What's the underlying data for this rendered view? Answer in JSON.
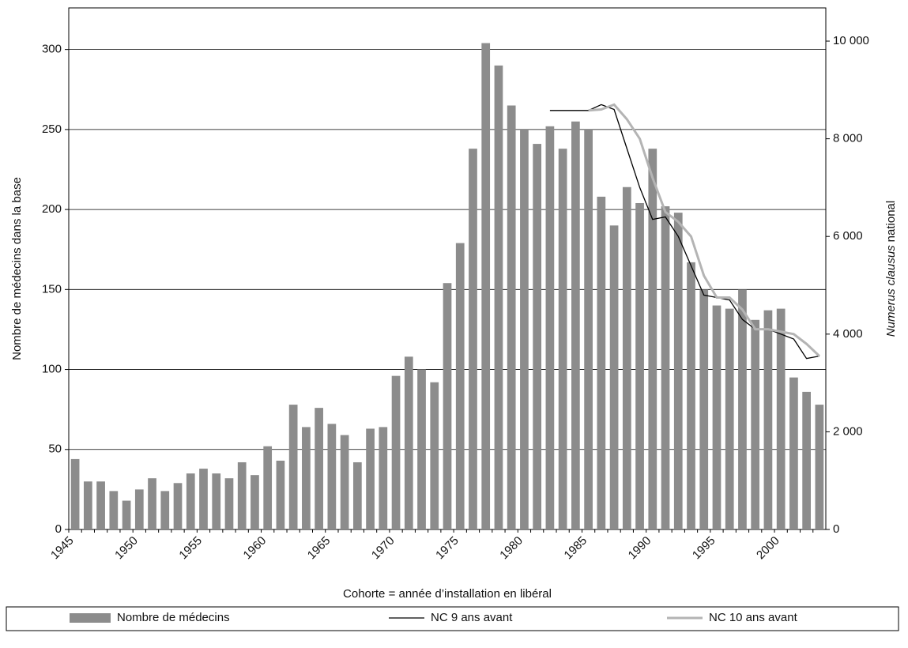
{
  "chart_data": {
    "type": "bar-line",
    "xlabel": "Cohorte = année d’installation en libéral",
    "ylabel": "Nombre de médecins dans la base",
    "y2label": {
      "italic": "Numerus clausus",
      "regular": "national"
    },
    "categories": [
      "1945",
      null,
      null,
      null,
      null,
      "1950",
      null,
      null,
      null,
      null,
      "1955",
      null,
      null,
      null,
      null,
      "1960",
      null,
      null,
      null,
      null,
      "1965",
      null,
      null,
      null,
      null,
      "1970",
      null,
      null,
      null,
      null,
      "1975",
      null,
      null,
      null,
      null,
      "1980",
      null,
      null,
      null,
      null,
      "1985",
      null,
      null,
      null,
      null,
      "1990",
      null,
      null,
      null,
      null,
      "1995",
      null,
      null,
      null,
      null,
      "2000",
      null,
      null,
      null
    ],
    "ylim": [
      0,
      326
    ],
    "yticks": [
      0,
      50,
      100,
      150,
      200,
      250,
      300
    ],
    "y2lim": [
      0,
      10680
    ],
    "y2ticks": [
      0,
      {
        "value": 2000,
        "label": "2 000"
      },
      {
        "value": 4000,
        "label": "4 000"
      },
      {
        "value": 6000,
        "label": "6 000"
      },
      {
        "value": 8000,
        "label": "8 000"
      },
      {
        "value": 10000,
        "label": "10 000"
      }
    ],
    "grid": true,
    "legend": "bottom",
    "series": [
      {
        "name": "Nombre de médecins",
        "color": "#8c8c8c",
        "kind": "bar",
        "values": [
          44,
          30,
          30,
          24,
          18,
          25,
          32,
          24,
          29,
          35,
          38,
          35,
          32,
          42,
          34,
          52,
          43,
          78,
          64,
          76,
          66,
          59,
          42,
          63,
          64,
          96,
          108,
          100,
          92,
          154,
          179,
          238,
          304,
          290,
          265,
          250,
          241,
          252,
          238,
          255,
          250,
          208,
          190,
          214,
          204,
          238,
          202,
          198,
          167,
          150,
          140,
          138,
          150,
          131,
          137,
          138,
          95,
          86,
          78
        ]
      },
      {
        "name": "NC 9 ans avant",
        "color": "#000000",
        "kind": "line",
        "axis": "y2",
        "values": [
          null,
          null,
          null,
          null,
          null,
          null,
          null,
          null,
          null,
          null,
          null,
          null,
          null,
          null,
          null,
          null,
          null,
          null,
          null,
          null,
          null,
          null,
          null,
          null,
          null,
          null,
          null,
          null,
          null,
          null,
          null,
          null,
          null,
          null,
          null,
          null,
          null,
          8580,
          8580,
          8580,
          8580,
          8700,
          8600,
          7800,
          7000,
          6350,
          6400,
          6000,
          5400,
          4800,
          4750,
          4700,
          4300,
          4100,
          4100,
          4000,
          3900,
          3500,
          3550
        ]
      },
      {
        "name": "NC 10 ans avant",
        "color": "#b4b4b4",
        "kind": "line",
        "axis": "y2",
        "values": [
          null,
          null,
          null,
          null,
          null,
          null,
          null,
          null,
          null,
          null,
          null,
          null,
          null,
          null,
          null,
          null,
          null,
          null,
          null,
          null,
          null,
          null,
          null,
          null,
          null,
          null,
          null,
          null,
          null,
          null,
          null,
          null,
          null,
          null,
          null,
          null,
          null,
          null,
          null,
          null,
          8580,
          8600,
          8700,
          8400,
          8000,
          7200,
          6500,
          6300,
          6000,
          5200,
          4750,
          4750,
          4500,
          4100,
          4100,
          4050,
          4000,
          3800,
          3550
        ]
      }
    ]
  }
}
